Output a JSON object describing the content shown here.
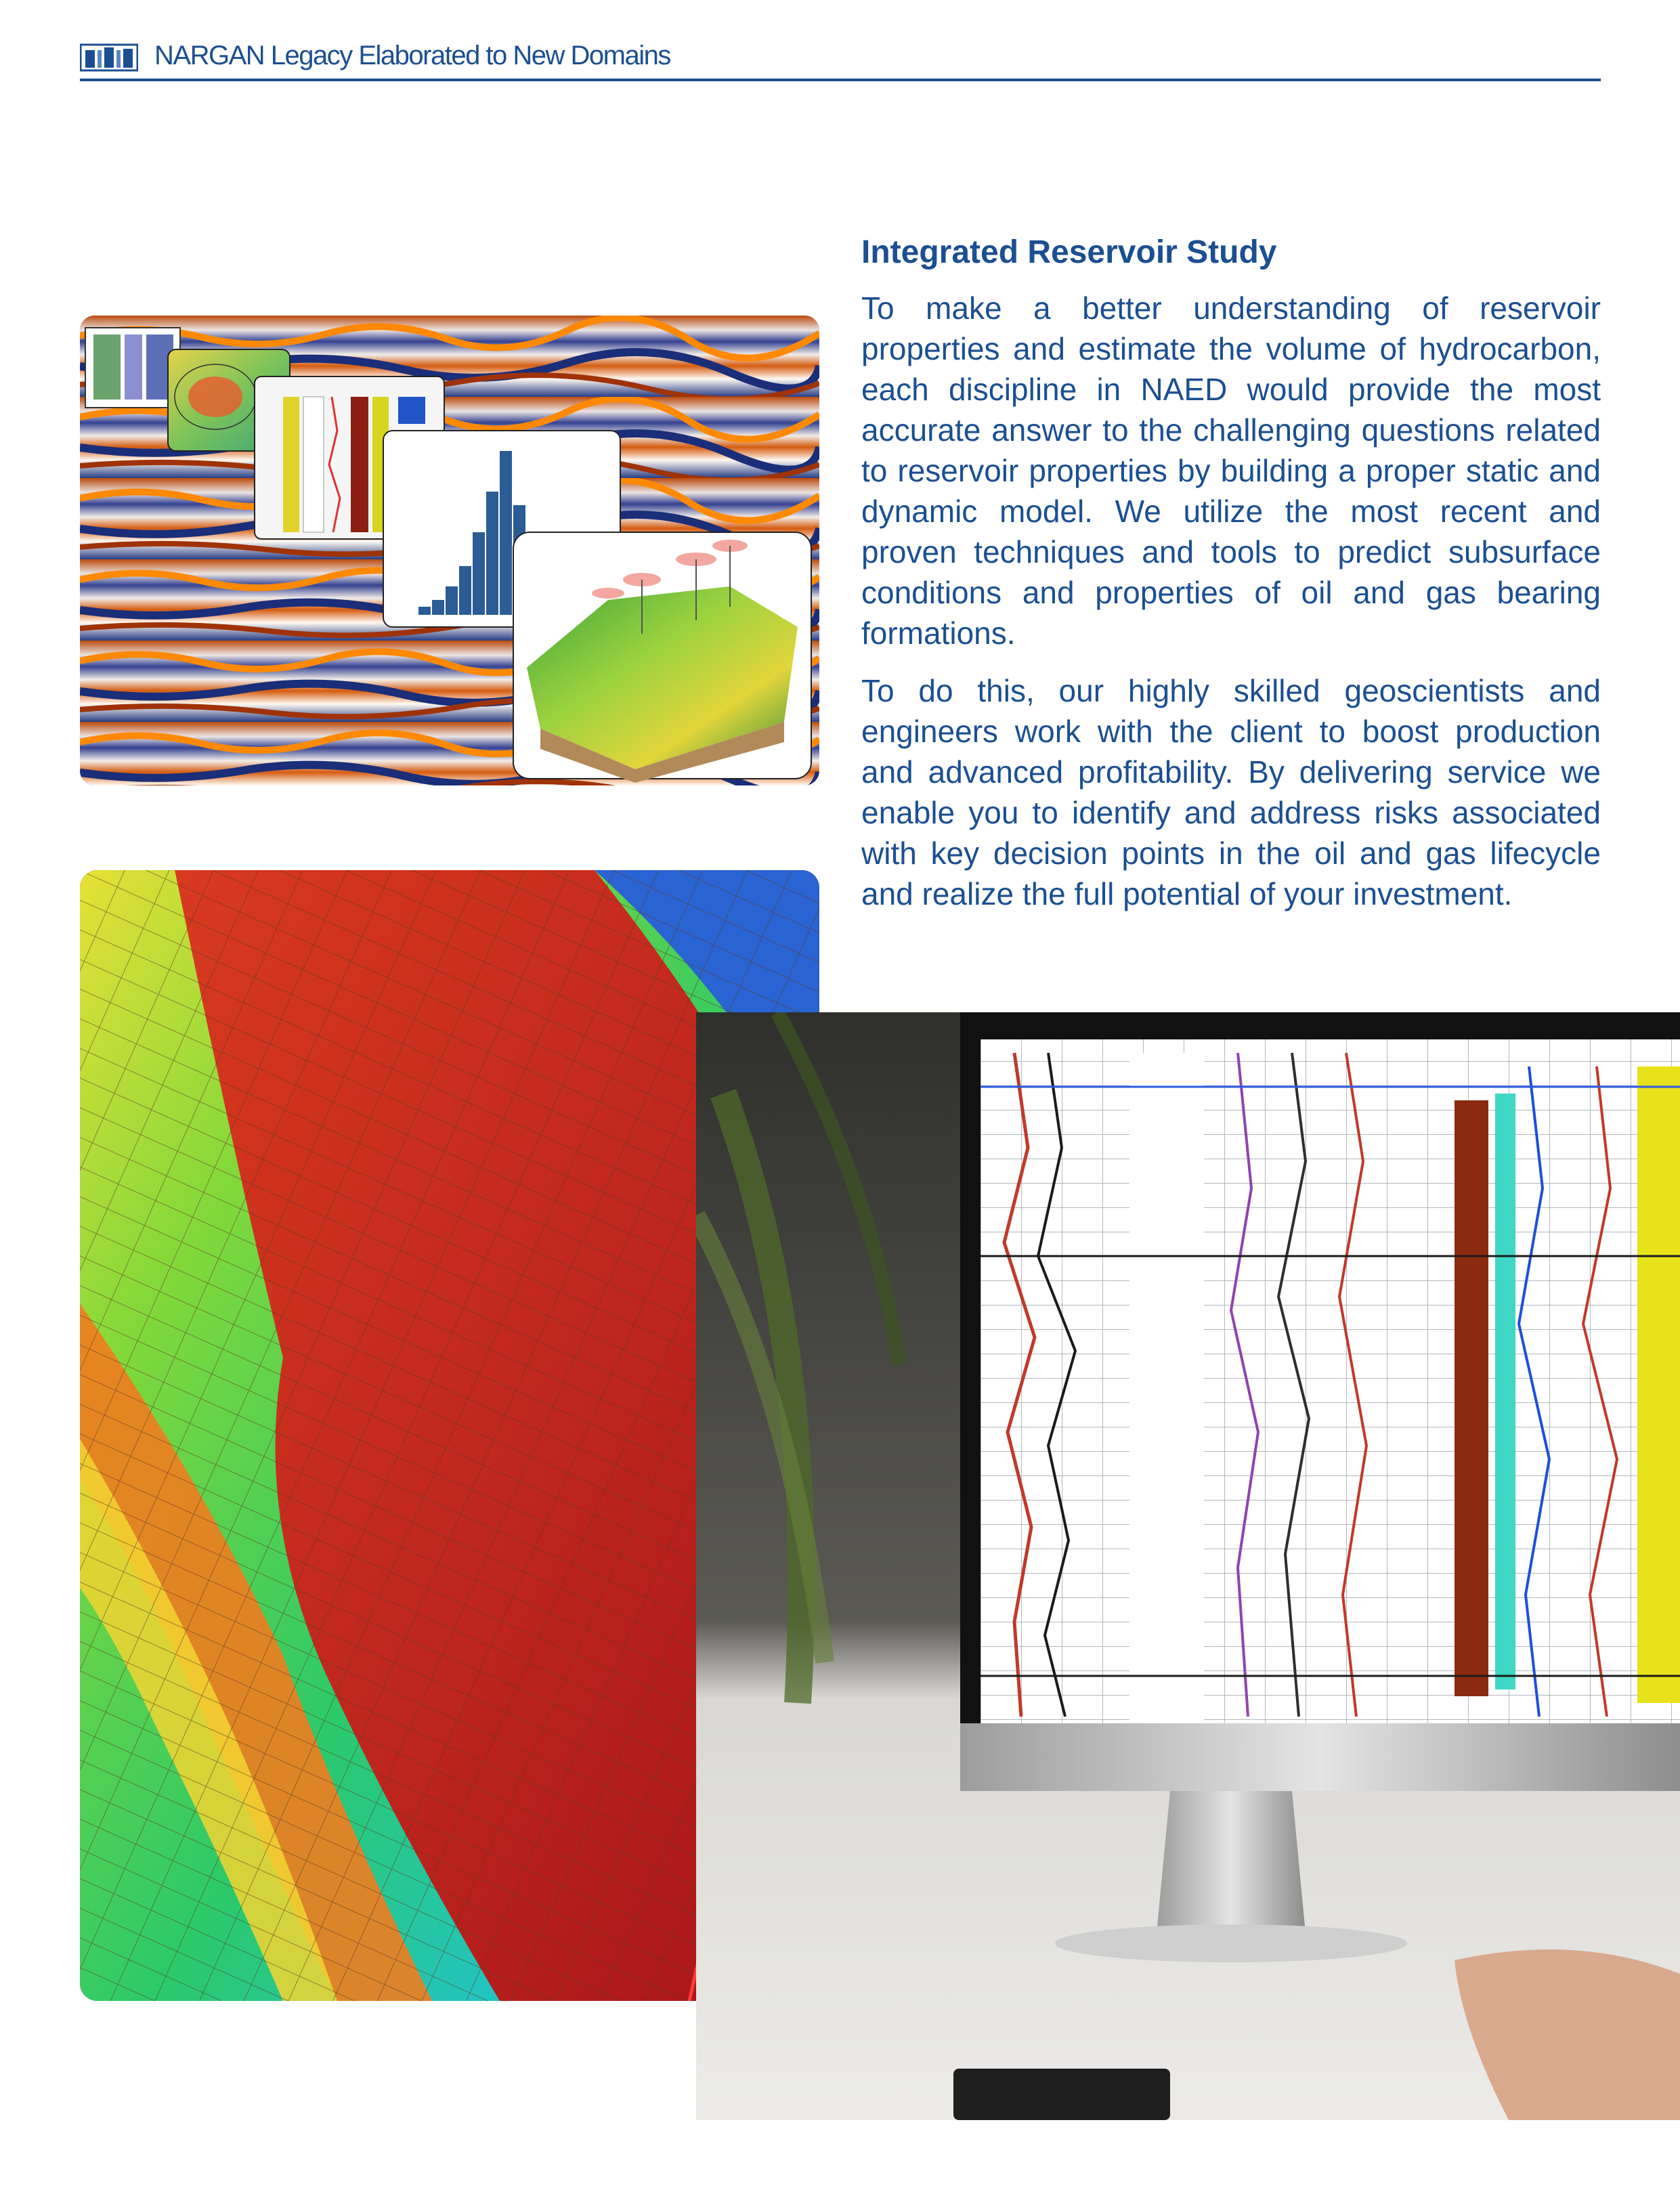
{
  "header": {
    "logo_icon": "nargan-logo-icon",
    "title": "NARGAN Legacy Elaborated to New Domains",
    "rule_color": "#1b4f91"
  },
  "section": {
    "title": "Integrated Reservoir Study",
    "paragraphs": [
      "To make a better understanding of reservoir properties and estimate the volume of hydrocarbon, each discipline in NAED would provide the most accurate answer to the challenging questions related to reservoir properties by building a proper static and dynamic model. We utilize the most recent and proven techniques and tools to predict subsurface conditions and properties of oil and gas bearing formations.",
      "To do this, our highly skilled geoscientists and engineers work with the client to boost production and advanced profitability. By delivering service we enable you to identify and address risks associated with key decision points in the oil and gas lifecycle and realize the full potential of your investment."
    ]
  },
  "images": {
    "seismic_collage": "seismic-collage-image",
    "reservoir_grid": "reservoir-grid-model-image",
    "monitor_workstation": "well-log-monitor-image"
  },
  "colors": {
    "text_blue": "#1b4f91"
  }
}
